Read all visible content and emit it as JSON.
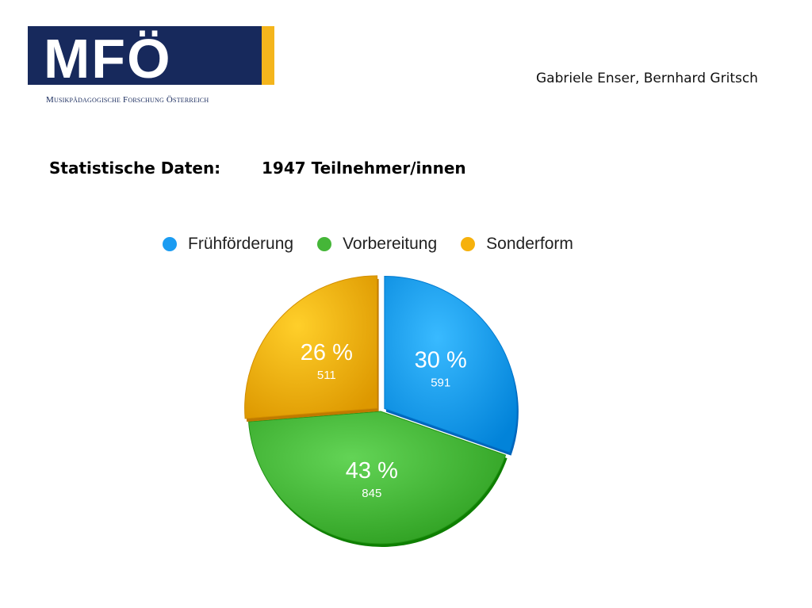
{
  "logo": {
    "letters": "MFÖ",
    "subtitle": "Musikpädagogische Forschung Österreich",
    "bg_color": "#17295c",
    "accent_color": "#f4b51c"
  },
  "authors": "Gabriele Enser, Bernhard Gritsch",
  "heading": "Statistische Daten:",
  "participants": "1947 Teilnehmer/innen",
  "chart_data": {
    "type": "pie",
    "legend_position": "top",
    "slices": [
      {
        "name": "Frühförderung",
        "value": 591,
        "percent_label": "30 %",
        "value_label": "591",
        "color": "#1b9cf2"
      },
      {
        "name": "Vorbereitung",
        "value": 845,
        "percent_label": "43 %",
        "value_label": "845",
        "color": "#45b638"
      },
      {
        "name": "Sonderform",
        "value": 511,
        "percent_label": "26 %",
        "value_label": "511",
        "color": "#f6b10c"
      }
    ]
  }
}
